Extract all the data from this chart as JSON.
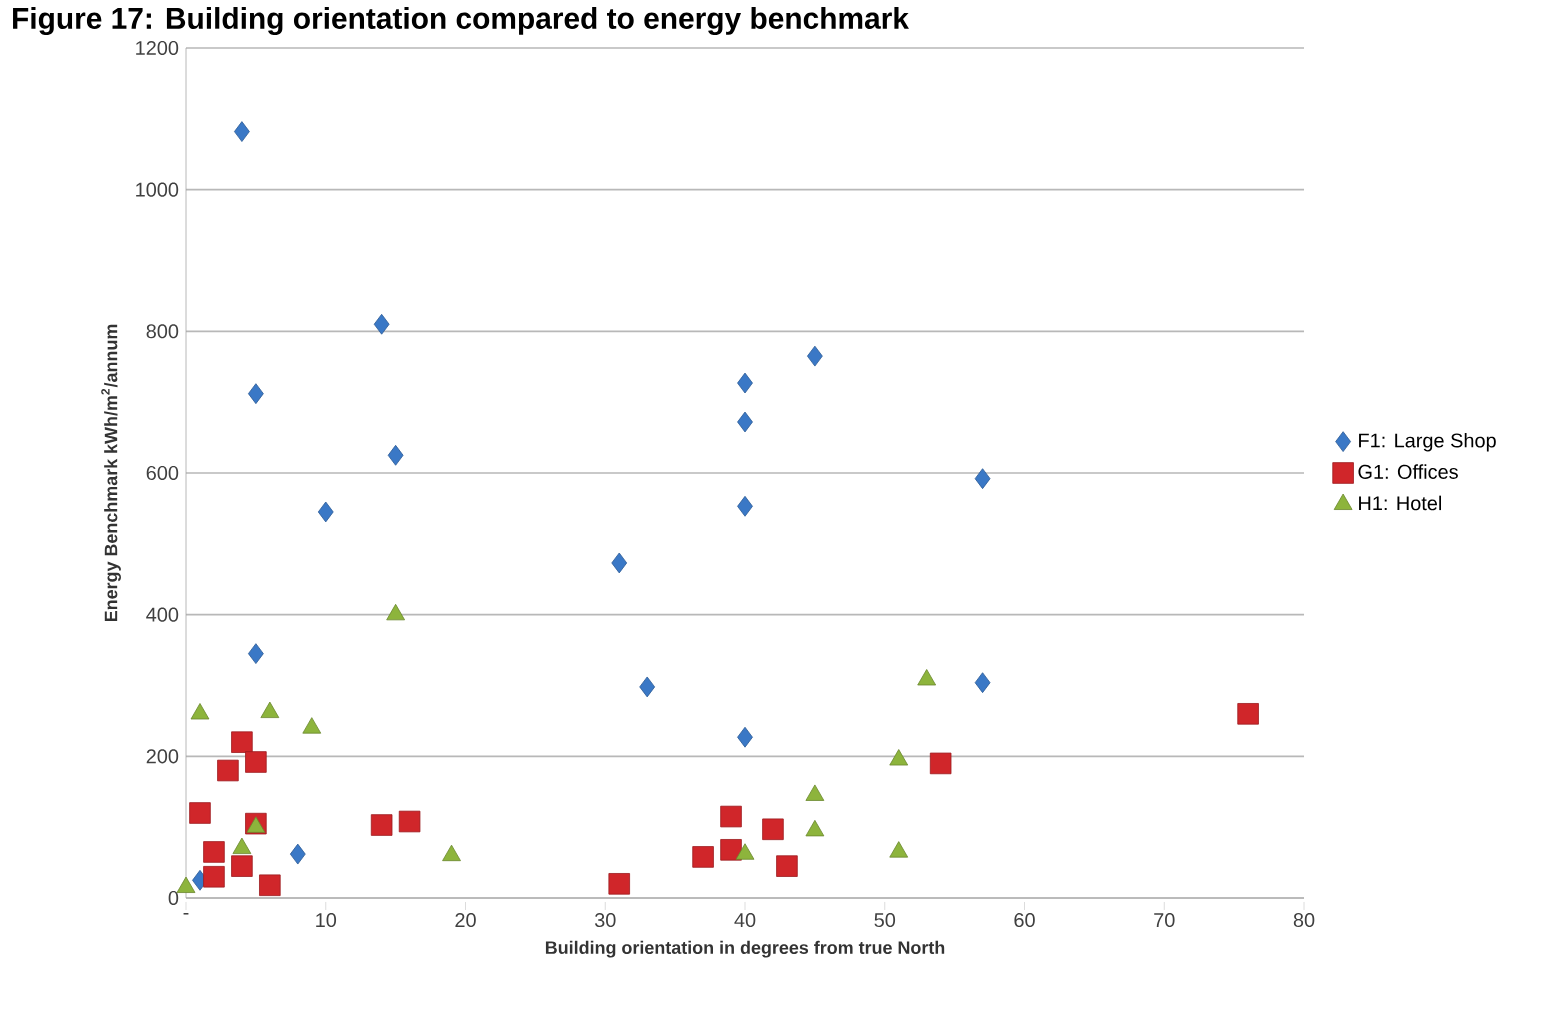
{
  "chart_data": {
    "type": "scatter",
    "title": "Figure 17: Building orientation compared to energy benchmark",
    "xlabel": "Building orientation in degrees from true North",
    "ylabel": "Energy Benchmark  kWh/m$^{2}$/annum",
    "xlim": [
      0,
      80
    ],
    "ylim": [
      0,
      1200
    ],
    "xticks": [
      {
        "value": 0,
        "label": "-"
      },
      10,
      20,
      30,
      40,
      50,
      60,
      70,
      80
    ],
    "yticks": [
      0,
      200,
      400,
      600,
      800,
      1000,
      1200
    ],
    "grid": "y",
    "legend": "right",
    "series": [
      {
        "name": "F1: Large Shop",
        "color": "#3a78c6",
        "marker": "diamond",
        "x": [
          4,
          14,
          5,
          15,
          10,
          40,
          45,
          40,
          40,
          57,
          31,
          33,
          5,
          57,
          40,
          8,
          1
        ],
        "values": [
          1082,
          810,
          712,
          625,
          545,
          727,
          765,
          672,
          553,
          592,
          473,
          298,
          345,
          304,
          227,
          62,
          25
        ]
      },
      {
        "name": "G1: Offices",
        "color": "#d0262a",
        "marker": "square",
        "x": [
          1,
          4,
          3,
          5,
          5,
          2,
          2,
          4,
          6,
          14,
          16,
          31,
          37,
          39,
          39,
          42,
          43,
          54,
          76
        ],
        "values": [
          120,
          220,
          180,
          192,
          105,
          65,
          30,
          45,
          18,
          103,
          108,
          20,
          58,
          115,
          68,
          97,
          45,
          190,
          260
        ]
      },
      {
        "name": "H1: Hotel",
        "color": "#8db43c",
        "marker": "triangle",
        "x": [
          0,
          1,
          6,
          9,
          4,
          5,
          15,
          19,
          40,
          45,
          45,
          51,
          51,
          53
        ],
        "values": [
          15,
          260,
          262,
          240,
          70,
          100,
          400,
          60,
          62,
          145,
          95,
          195,
          65,
          308
        ]
      }
    ]
  }
}
